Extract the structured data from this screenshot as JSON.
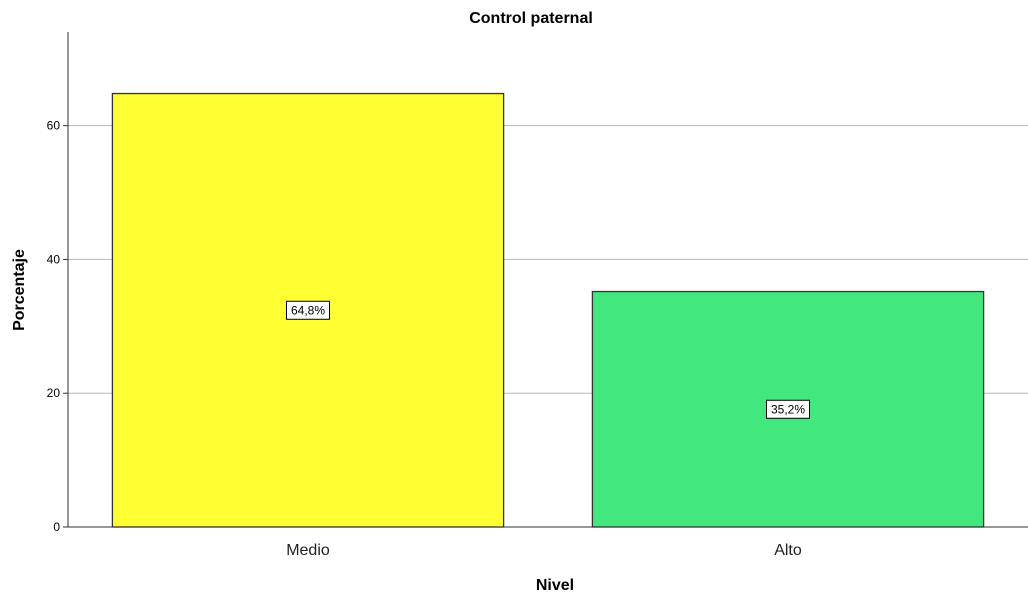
{
  "chart_data": {
    "type": "bar",
    "title": "Control paternal",
    "xlabel": "Nivel",
    "ylabel": "Porcentaje",
    "categories": [
      "Medio",
      "Alto"
    ],
    "values": [
      64.8,
      35.2
    ],
    "data_labels": [
      "64,8%",
      "35,2%"
    ],
    "colors": [
      "#ffff33",
      "#42e87e"
    ],
    "ylim": [
      0,
      74
    ],
    "yticks": [
      0,
      20,
      40,
      60
    ],
    "ytick_labels": [
      "0",
      "20",
      "40",
      "60"
    ],
    "grid": true,
    "legend": "none"
  }
}
